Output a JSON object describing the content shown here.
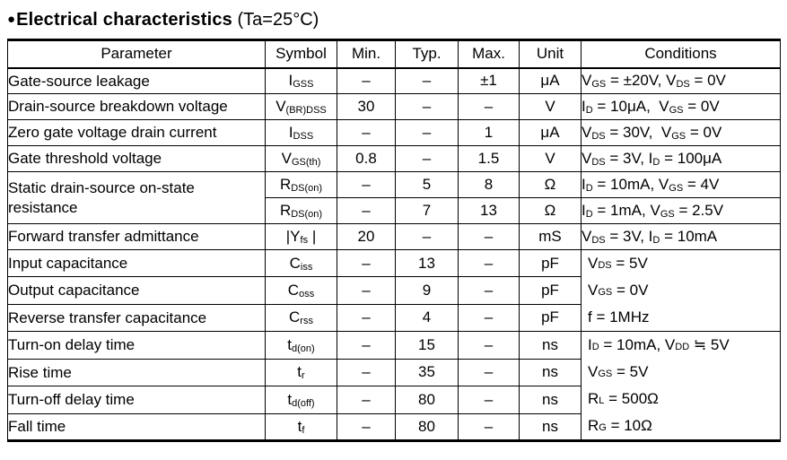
{
  "header": {
    "bullet": "●",
    "title": "Electrical characteristics",
    "suffix": " (Ta=25°C)"
  },
  "table": {
    "headers": [
      "Parameter",
      "Symbol",
      "Min.",
      "Typ.",
      "Max.",
      "Unit",
      "Conditions"
    ],
    "rows": [
      {
        "parameter": "Gate-source leakage",
        "symbol": "I~GSS~",
        "min": "–",
        "typ": "–",
        "max": "±1",
        "unit": "μA",
        "cond": "V~GS~ = ±20V, V~DS~ = 0V"
      },
      {
        "parameter": "Drain-source breakdown voltage",
        "symbol": "V~(BR)DSS~",
        "min": "30",
        "typ": "–",
        "max": "–",
        "unit": "V",
        "cond": "I~D~ = 10μA,  V~GS~ = 0V"
      },
      {
        "parameter": "Zero gate voltage drain current",
        "symbol": "I~DSS~",
        "min": "–",
        "typ": "–",
        "max": "1",
        "unit": "μA",
        "cond": "V~DS~ = 30V,  V~GS~ = 0V"
      },
      {
        "parameter": "Gate threshold voltage",
        "symbol": "V~GS(th)~",
        "min": "0.8",
        "typ": "–",
        "max": "1.5",
        "unit": "V",
        "cond": "V~DS~ = 3V, I~D~ = 100μA"
      },
      {
        "parameter": "Static drain-source on-state resistance",
        "parameter_rowspan": 2,
        "symbol": "R~DS(on)~",
        "min": "–",
        "typ": "5",
        "max": "8",
        "unit": "Ω",
        "cond": "I~D~ = 10mA, V~GS~ = 4V"
      },
      {
        "symbol": "R~DS(on)~",
        "min": "–",
        "typ": "7",
        "max": "13",
        "unit": "Ω",
        "cond": "I~D~ = 1mA, V~GS~ = 2.5V"
      },
      {
        "parameter": "Forward transfer admittance",
        "symbol": "|Y~fs~ |",
        "min": "20",
        "typ": "–",
        "max": "–",
        "unit": "mS",
        "cond": "V~DS~ = 3V, I~D~ = 10mA"
      },
      {
        "parameter": "Input capacitance",
        "symbol": "C~iss~",
        "min": "–",
        "typ": "13",
        "max": "–",
        "unit": "pF",
        "cond_rowspan": 3,
        "cond_group": [
          "V~DS~ = 5V",
          "V~GS~ = 0V",
          "f = 1MHz"
        ]
      },
      {
        "parameter": "Output capacitance",
        "symbol": "C~oss~",
        "min": "–",
        "typ": "9",
        "max": "–",
        "unit": "pF"
      },
      {
        "parameter": "Reverse transfer capacitance",
        "symbol": "C~rss~",
        "min": "–",
        "typ": "4",
        "max": "–",
        "unit": "pF"
      },
      {
        "parameter": "Turn-on delay time",
        "symbol": "t~d(on)~",
        "min": "–",
        "typ": "15",
        "max": "–",
        "unit": "ns",
        "cond_rowspan": 4,
        "cond_group": [
          "I~D~ = 10mA, V~DD~ ≒ 5V",
          "V~GS~ = 5V",
          "R~L~ = 500Ω",
          "R~G~ = 10Ω"
        ]
      },
      {
        "parameter": "Rise time",
        "symbol": "t~r~",
        "min": "–",
        "typ": "35",
        "max": "–",
        "unit": "ns"
      },
      {
        "parameter": "Turn-off delay time",
        "symbol": "t~d(off)~",
        "min": "–",
        "typ": "80",
        "max": "–",
        "unit": "ns"
      },
      {
        "parameter": "Fall time",
        "symbol": "t~f~",
        "min": "–",
        "typ": "80",
        "max": "–",
        "unit": "ns"
      }
    ]
  }
}
